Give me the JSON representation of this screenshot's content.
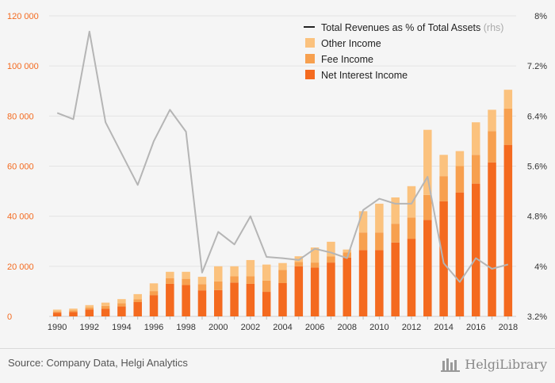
{
  "chart_data": {
    "type": "bar",
    "stacked": true,
    "categories": [
      "1990",
      "1991",
      "1992",
      "1993",
      "1994",
      "1995",
      "1996",
      "1997",
      "1998",
      "1999",
      "2000",
      "2001",
      "2002",
      "2003",
      "2004",
      "2005",
      "2006",
      "2007",
      "2008",
      "2009",
      "2010",
      "2011",
      "2012",
      "2013",
      "2014",
      "2015",
      "2016",
      "2017",
      "2018"
    ],
    "x_tick_labels": [
      "1990",
      "1992",
      "1994",
      "1996",
      "1998",
      "2000",
      "2002",
      "2004",
      "2006",
      "2008",
      "2010",
      "2012",
      "2014",
      "2016",
      "2018"
    ],
    "ylim": [
      0,
      120000
    ],
    "y_ticks": [
      0,
      20000,
      40000,
      60000,
      80000,
      100000,
      120000
    ],
    "y_tick_labels": [
      "0",
      "20 000",
      "40 000",
      "60 000",
      "80 000",
      "100 000",
      "120 000"
    ],
    "y2lim": [
      3.2,
      8.0
    ],
    "y2_ticks": [
      3.2,
      4.0,
      4.8,
      5.6,
      6.4,
      7.2,
      8.0
    ],
    "y2_tick_labels": [
      "3.2%",
      "4%",
      "4.8%",
      "5.6%",
      "6.4%",
      "7.2%",
      "8%"
    ],
    "series": [
      {
        "name": "Net Interest Income",
        "color": "#f46a1f",
        "values": [
          1500,
          1800,
          2800,
          3000,
          4000,
          5700,
          8500,
          13000,
          12500,
          10400,
          10500,
          13500,
          13000,
          9800,
          13300,
          20000,
          19500,
          21500,
          23500,
          26500,
          26500,
          29500,
          31000,
          38500,
          46000,
          49500,
          53000,
          61500,
          68500
        ]
      },
      {
        "name": "Fee Income",
        "color": "#f7a04f",
        "values": [
          500,
          600,
          800,
          1200,
          1300,
          1200,
          1600,
          2300,
          2500,
          2500,
          3500,
          2500,
          3000,
          4500,
          5300,
          1700,
          2000,
          2500,
          2000,
          7000,
          7000,
          7500,
          8500,
          10000,
          10000,
          10500,
          11500,
          12500,
          14500
        ]
      },
      {
        "name": "Other Income",
        "color": "#fbc27e",
        "values": [
          700,
          700,
          900,
          1300,
          1600,
          2000,
          3100,
          2500,
          2800,
          2900,
          6000,
          4000,
          6500,
          6400,
          2700,
          2300,
          6000,
          5800,
          1200,
          8500,
          11500,
          10500,
          12500,
          26000,
          8500,
          6000,
          13000,
          8500,
          7500
        ]
      }
    ],
    "line_series": {
      "name": "Total Revenues as % of Total Assets",
      "name_suffix": "(rhs)",
      "color": "#b5b5b5",
      "axis": "right",
      "values": [
        6.45,
        6.35,
        7.75,
        6.3,
        5.8,
        5.3,
        6.0,
        6.5,
        6.15,
        3.9,
        4.55,
        4.35,
        4.8,
        4.15,
        4.13,
        4.1,
        4.28,
        4.22,
        4.13,
        4.9,
        5.08,
        5.0,
        5.0,
        5.43,
        4.05,
        3.75,
        4.13,
        3.96,
        4.03
      ]
    },
    "legend": {
      "position": "top-right",
      "line_label": "Total Revenues as % of Total Assets",
      "line_label_suffix": "(rhs)",
      "items": [
        "Other Income",
        "Fee Income",
        "Net Interest Income"
      ]
    },
    "grid": true
  },
  "footer": {
    "source": "Source: Company Data, Helgi Analytics",
    "brand": "HelgiLibrary"
  }
}
